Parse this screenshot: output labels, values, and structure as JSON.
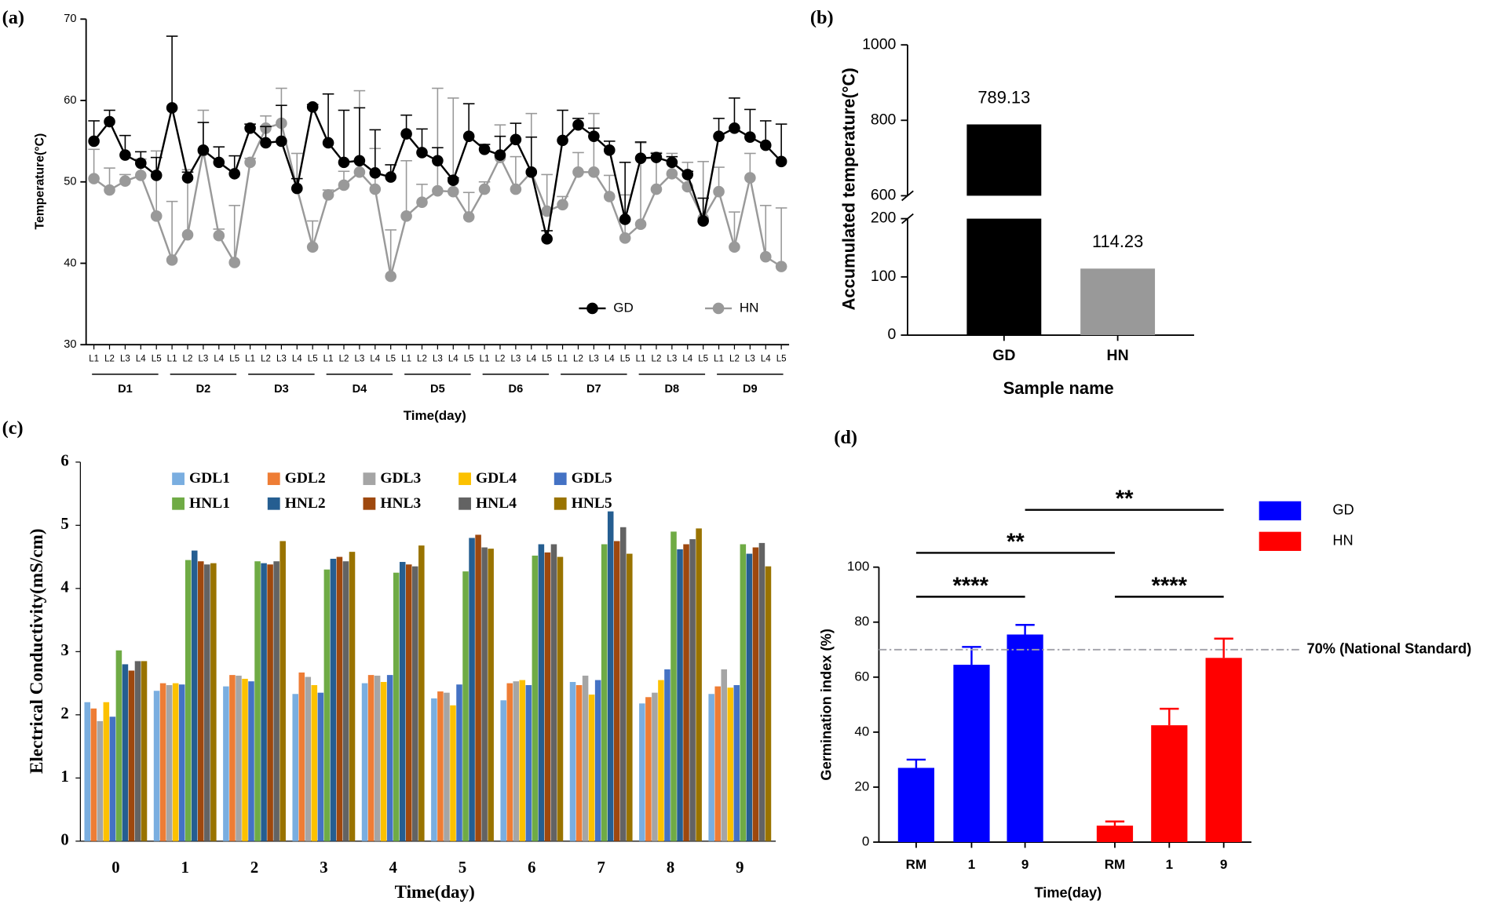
{
  "chart_data": [
    {
      "type": "line",
      "panel": "(a)",
      "ylabel": "Temperature(°C)",
      "xlabel": "Time(day)",
      "categories": [
        "L1",
        "L2",
        "L3",
        "L4",
        "L5",
        "L1",
        "L2",
        "L3",
        "L4",
        "L5",
        "L1",
        "L2",
        "L3",
        "L4",
        "L5",
        "L1",
        "L2",
        "L3",
        "L4",
        "L5",
        "L1",
        "L2",
        "L3",
        "L4",
        "L5",
        "L1",
        "L2",
        "L3",
        "L4",
        "L5",
        "L1",
        "L2",
        "L3",
        "L4",
        "L5",
        "L1",
        "L2",
        "L3",
        "L4",
        "L5",
        "L1",
        "L2",
        "L3",
        "L4",
        "L5"
      ],
      "groups": [
        "D1",
        "D2",
        "D3",
        "D4",
        "D5",
        "D6",
        "D7",
        "D8",
        "D9"
      ],
      "ylim": [
        30,
        70
      ],
      "yticks": [
        30,
        40,
        50,
        60,
        70
      ],
      "series": [
        {
          "name": "GD",
          "color": "#000000",
          "values": [
            55.0,
            57.4,
            53.3,
            52.3,
            50.8,
            59.1,
            50.5,
            53.9,
            52.4,
            51.0,
            56.6,
            54.8,
            55.0,
            49.2,
            59.2,
            54.8,
            52.4,
            52.6,
            51.1,
            50.6,
            55.9,
            53.6,
            52.6,
            50.2,
            55.6,
            54.0,
            53.3,
            55.2,
            51.2,
            43.0,
            55.1,
            57.0,
            55.6,
            53.9,
            45.4,
            52.9,
            53.0,
            52.4,
            50.9,
            45.2,
            55.6,
            56.6,
            55.5,
            54.5,
            52.5
          ],
          "errors": [
            2.5,
            1.4,
            2.4,
            1.4,
            2.2,
            8.8,
            0.7,
            3.4,
            1.9,
            2.2,
            0.5,
            2.0,
            4.4,
            1.2,
            0.3,
            6.0,
            6.4,
            6.5,
            5.3,
            1.5,
            2.3,
            2.9,
            1.6,
            0.3,
            4.0,
            0.6,
            2.3,
            2.0,
            4.3,
            1.0,
            3.7,
            0.8,
            1.0,
            1.1,
            7.0,
            2.0,
            0.5,
            0.7,
            0.4,
            2.8,
            2.2,
            3.7,
            3.4,
            3.0,
            4.6
          ]
        },
        {
          "name": "HN",
          "color": "#999999",
          "values": [
            50.4,
            49.0,
            50.1,
            50.8,
            45.8,
            40.4,
            43.5,
            53.8,
            43.4,
            40.1,
            52.4,
            56.6,
            57.2,
            49.2,
            42.0,
            48.4,
            49.6,
            51.2,
            49.1,
            38.4,
            45.8,
            47.5,
            48.9,
            48.8,
            45.7,
            49.1,
            53.0,
            49.1,
            51.2,
            46.4,
            47.2,
            51.2,
            51.2,
            48.2,
            43.1,
            44.8,
            49.1,
            51.0,
            49.4,
            45.5,
            48.8,
            42.0,
            50.5,
            40.8,
            39.6
          ],
          "errors": [
            3.6,
            2.7,
            0.8,
            2.0,
            8.0,
            7.2,
            8.0,
            5.0,
            0.8,
            7.0,
            0.5,
            1.5,
            4.3,
            4.3,
            3.2,
            0.6,
            1.7,
            10.0,
            5.0,
            5.7,
            6.8,
            2.2,
            12.6,
            11.5,
            3.0,
            0.9,
            4.0,
            4.0,
            7.2,
            4.5,
            1.0,
            2.4,
            7.2,
            2.6,
            5.3,
            10.0,
            4.5,
            2.5,
            3.0,
            7.0,
            3.0,
            4.3,
            3.0,
            6.3,
            7.2
          ]
        }
      ]
    },
    {
      "type": "bar",
      "panel": "(b)",
      "ylabel": "Accumulated temperature(°C)",
      "xlabel": "Sample name",
      "categories": [
        "GD",
        "HN"
      ],
      "values": [
        789.13,
        114.23
      ],
      "colors": [
        "#000000",
        "#999999"
      ],
      "ylim": [
        0,
        1000
      ],
      "ybreak": [
        200,
        600
      ],
      "yticks": [
        0,
        100,
        200,
        600,
        800,
        1000
      ]
    },
    {
      "type": "bar",
      "panel": "(c)",
      "ylabel": "Electrical Conductivity(mS/cm)",
      "xlabel": "Time(day)",
      "categories": [
        "0",
        "1",
        "2",
        "3",
        "4",
        "5",
        "6",
        "7",
        "8",
        "9"
      ],
      "ylim": [
        0,
        6
      ],
      "yticks": [
        0,
        1,
        2,
        3,
        4,
        5,
        6
      ],
      "series": [
        {
          "name": "GDL1",
          "color": "#7aaee0",
          "values": [
            2.2,
            2.38,
            2.45,
            2.33,
            2.5,
            2.26,
            2.23,
            2.52,
            2.18,
            2.33
          ]
        },
        {
          "name": "GDL2",
          "color": "#ee7d35",
          "values": [
            2.1,
            2.5,
            2.63,
            2.67,
            2.63,
            2.37,
            2.5,
            2.47,
            2.28,
            2.45
          ]
        },
        {
          "name": "GDL3",
          "color": "#a5a5a5",
          "values": [
            1.9,
            2.47,
            2.62,
            2.6,
            2.62,
            2.35,
            2.53,
            2.62,
            2.35,
            2.72
          ]
        },
        {
          "name": "GDL4",
          "color": "#fcc100",
          "values": [
            2.2,
            2.5,
            2.57,
            2.47,
            2.52,
            2.15,
            2.55,
            2.32,
            2.55,
            2.43
          ]
        },
        {
          "name": "GDL5",
          "color": "#4472c4",
          "values": [
            1.97,
            2.48,
            2.53,
            2.35,
            2.63,
            2.48,
            2.47,
            2.55,
            2.72,
            2.47
          ]
        },
        {
          "name": "HNL1",
          "color": "#6fab45",
          "values": [
            3.02,
            4.45,
            4.43,
            4.3,
            4.25,
            4.27,
            4.52,
            4.7,
            4.9,
            4.7
          ]
        },
        {
          "name": "HNL2",
          "color": "#255e91",
          "values": [
            2.8,
            4.6,
            4.4,
            4.47,
            4.42,
            4.8,
            4.7,
            5.22,
            4.62,
            4.55
          ]
        },
        {
          "name": "HNL3",
          "color": "#9e480e",
          "values": [
            2.7,
            4.43,
            4.38,
            4.5,
            4.38,
            4.85,
            4.57,
            4.75,
            4.7,
            4.65
          ]
        },
        {
          "name": "HNL4",
          "color": "#636363",
          "values": [
            2.85,
            4.38,
            4.43,
            4.43,
            4.35,
            4.65,
            4.7,
            4.97,
            4.78,
            4.72
          ]
        },
        {
          "name": "HNL5",
          "color": "#997300",
          "values": [
            2.85,
            4.4,
            4.75,
            4.58,
            4.68,
            4.63,
            4.5,
            4.55,
            4.95,
            4.35
          ]
        }
      ]
    },
    {
      "type": "bar",
      "panel": "(d)",
      "ylabel": "Germination index (%)",
      "xlabel": "Time(day)",
      "categories": [
        "RM",
        "1",
        "9",
        "RM",
        "1",
        "9"
      ],
      "ylim": [
        0,
        100
      ],
      "yticks": [
        0,
        20,
        40,
        60,
        80,
        100
      ],
      "series": [
        {
          "name": "GD",
          "color": "#0000ff",
          "values": [
            27,
            64.5,
            75.5,
            null,
            null,
            null
          ],
          "errors": [
            3,
            6.5,
            3.5,
            null,
            null,
            null
          ]
        },
        {
          "name": "HN",
          "color": "#ff0000",
          "values": [
            null,
            null,
            null,
            6,
            42.5,
            67
          ],
          "errors": [
            null,
            null,
            null,
            1.5,
            6,
            7
          ]
        }
      ],
      "reference_line": {
        "value": 70,
        "label": "70% (National Standard)"
      },
      "significance": [
        {
          "text": "****",
          "from": 0,
          "to": 2
        },
        {
          "text": "**",
          "from": 0,
          "to": 3
        },
        {
          "text": "**",
          "from": 2,
          "to": 5
        },
        {
          "text": "****",
          "from": 3,
          "to": 5
        }
      ]
    }
  ]
}
